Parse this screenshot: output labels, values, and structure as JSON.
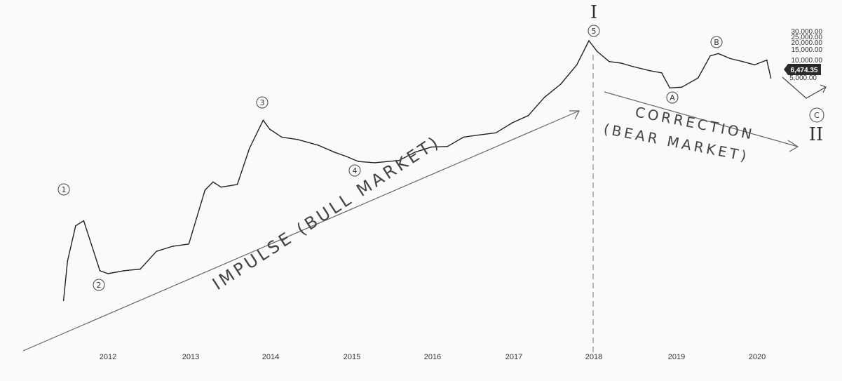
{
  "chart_data": {
    "type": "line",
    "title": "",
    "xlabel": "",
    "ylabel": "",
    "x_ticks": [
      "2012",
      "2013",
      "2014",
      "2015",
      "2016",
      "2017",
      "2018",
      "2019",
      "2020"
    ],
    "y_ticks": [
      "30,000.00",
      "25,000.00",
      "20,000.00",
      "15,000.00",
      "10,000.00",
      "5,000.00"
    ],
    "y_scale": "log",
    "last_price_label": "6,474.35",
    "series": [
      {
        "x": [
          2011.45,
          2011.5,
          2011.6,
          2011.7,
          2011.9,
          2012.0,
          2012.2,
          2012.4,
          2012.6,
          2012.8,
          2013.0,
          2013.2,
          2013.3,
          2013.4,
          2013.6,
          2013.75,
          2013.92,
          2014.0,
          2014.15,
          2014.35,
          2014.6,
          2014.8,
          2014.95,
          2015.1,
          2015.3,
          2015.6,
          2015.8,
          2016.0,
          2016.2,
          2016.4,
          2016.6,
          2016.8,
          2017.0,
          2017.2,
          2017.4,
          2017.6,
          2017.8,
          2017.95,
          2018.05,
          2018.2,
          2018.35,
          2018.5,
          2018.7,
          2018.85,
          2018.95,
          2019.1,
          2019.3,
          2019.45,
          2019.55,
          2019.7,
          2019.85,
          2020.0,
          2020.15,
          2020.2
        ],
        "y": [
          10,
          15,
          25,
          30,
          5,
          4.5,
          5,
          5.3,
          10,
          12,
          13,
          90,
          120,
          100,
          110,
          400,
          1100,
          800,
          600,
          550,
          450,
          350,
          300,
          250,
          240,
          260,
          350,
          420,
          430,
          600,
          650,
          700,
          1000,
          1300,
          2500,
          4000,
          8000,
          19000,
          13000,
          9000,
          8500,
          7500,
          6500,
          6000,
          3500,
          3600,
          5000,
          11000,
          12000,
          10000,
          9000,
          8000,
          9500,
          5000
        ]
      }
    ],
    "wave_labels": [
      "1",
      "2",
      "3",
      "4",
      "5",
      "A",
      "B",
      "C"
    ],
    "degree_labels": [
      "I",
      "II"
    ],
    "annotations": [
      "IMPULSE (BULL MARKET)",
      "CORRECTION",
      "(BEAR MARKET)"
    ]
  }
}
